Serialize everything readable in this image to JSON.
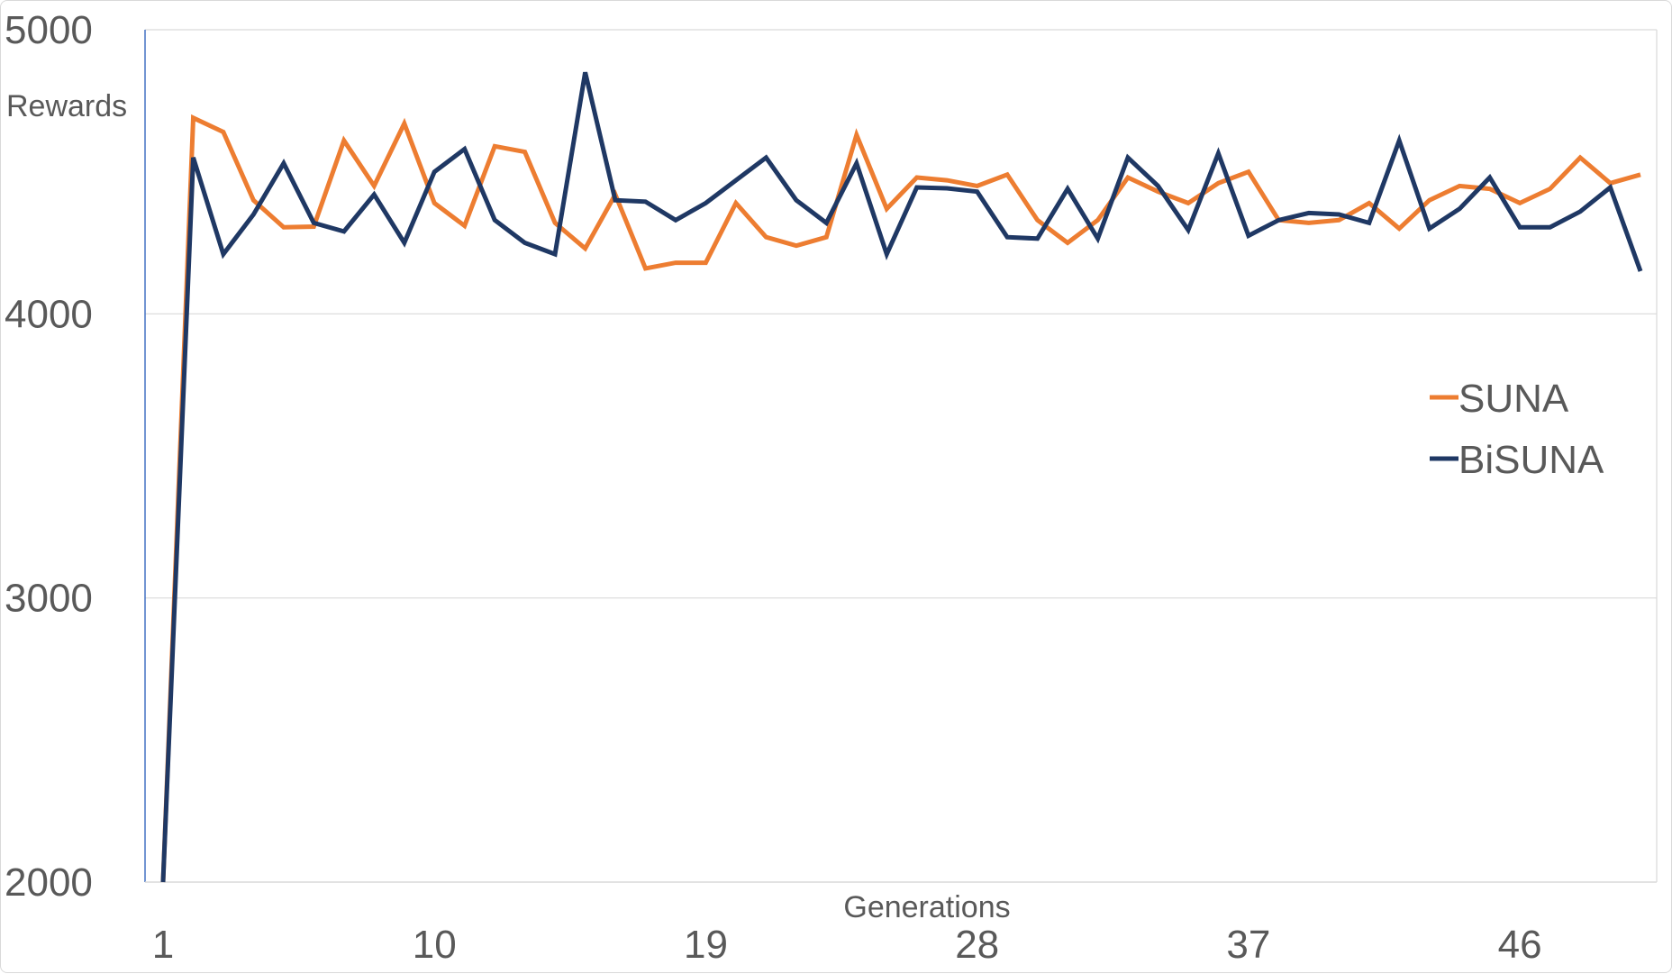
{
  "chart_data": {
    "type": "line",
    "title": "",
    "xlabel": "Generations",
    "ylabel": "Rewards",
    "ylim": [
      2000,
      5000
    ],
    "yticks": [
      2000,
      3000,
      4000,
      5000
    ],
    "xticks": [
      1,
      10,
      19,
      28,
      37,
      46
    ],
    "xlim": [
      1,
      50
    ],
    "grid": true,
    "legend_position": "right",
    "x": [
      1,
      2,
      3,
      4,
      5,
      6,
      7,
      8,
      9,
      10,
      11,
      12,
      13,
      14,
      15,
      16,
      17,
      18,
      19,
      20,
      21,
      22,
      23,
      24,
      25,
      26,
      27,
      28,
      29,
      30,
      31,
      32,
      33,
      34,
      35,
      36,
      37,
      38,
      39,
      40,
      41,
      42,
      43,
      44,
      45,
      46,
      47,
      48,
      49,
      50
    ],
    "series": [
      {
        "name": "SUNA",
        "color": "#ED7D31",
        "values": [
          2000,
          4690,
          4640,
          4400,
          4305,
          4307,
          4610,
          4450,
          4670,
          4390,
          4310,
          4590,
          4570,
          4320,
          4230,
          4420,
          4160,
          4180,
          4180,
          4390,
          4270,
          4240,
          4270,
          4630,
          4370,
          4480,
          4470,
          4450,
          4490,
          4330,
          4250,
          4330,
          4480,
          4430,
          4390,
          4460,
          4500,
          4330,
          4320,
          4330,
          4390,
          4300,
          4400,
          4450,
          4440,
          4390,
          4440,
          4550,
          4460,
          4490
        ]
      },
      {
        "name": "BiSUNA",
        "color": "#1F3864",
        "values": [
          2000,
          4550,
          4210,
          4350,
          4530,
          4320,
          4290,
          4420,
          4250,
          4500,
          4580,
          4330,
          4250,
          4210,
          4850,
          4400,
          4395,
          4330,
          4390,
          4470,
          4550,
          4400,
          4320,
          4530,
          4210,
          4445,
          4442,
          4430,
          4270,
          4265,
          4440,
          4265,
          4550,
          4450,
          4295,
          4565,
          4275,
          4330,
          4355,
          4350,
          4320,
          4610,
          4300,
          4370,
          4480,
          4305,
          4305,
          4360,
          4445,
          4150
        ]
      }
    ]
  }
}
